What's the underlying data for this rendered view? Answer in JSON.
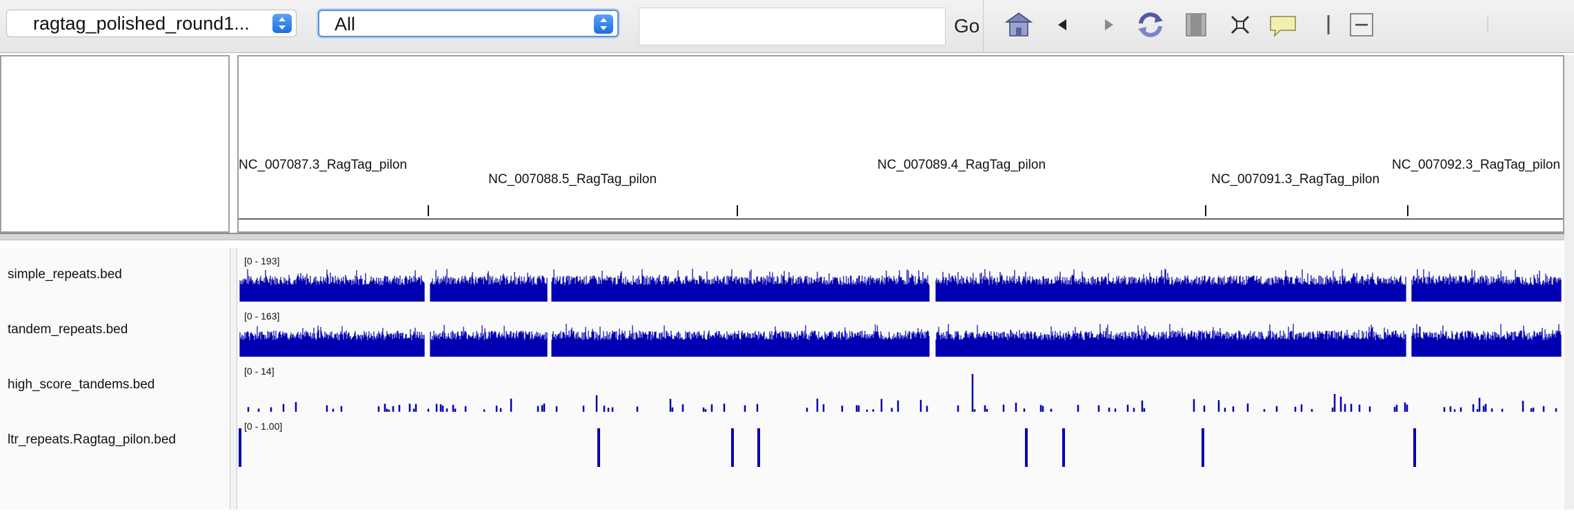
{
  "toolbar": {
    "genome": "ragtag_polished_round1...",
    "chromosome": "All",
    "locus_value": "",
    "go_label": "Go",
    "icons": [
      "home-icon",
      "back-icon",
      "forward-icon",
      "refresh-icon",
      "roi-icon",
      "fit-window-icon",
      "popup-info-icon",
      "ruler-toggle-icon",
      "zoom-out-icon"
    ]
  },
  "ruler": {
    "chromosomes": [
      {
        "name": "NC_007087.3_RagTag_pilon",
        "row": 0
      },
      {
        "name": "NC_007088.5_RagTag_pilon",
        "row": 1
      },
      {
        "name": "NC_007089.4_RagTag_pilon",
        "row": 0
      },
      {
        "name": "NC_007091.3_RagTag_pilon",
        "row": 1
      },
      {
        "name": "NC_007092.3_RagTag_pilon",
        "row": 0
      }
    ]
  },
  "tracks": [
    {
      "name": "simple_repeats.bed",
      "range": "[0 - 193]",
      "color": "#0000b2",
      "profile": "dense",
      "max": 193
    },
    {
      "name": "tandem_repeats.bed",
      "range": "[0 - 163]",
      "color": "#0000b2",
      "profile": "dense",
      "max": 163
    },
    {
      "name": "high_score_tandems.bed",
      "range": "[0 - 14]",
      "color": "#0000b2",
      "profile": "sparse",
      "max": 14
    },
    {
      "name": "ltr_repeats.Ragtag_pilon.bed",
      "range": "[0 - 1.00]",
      "color": "#0000b2",
      "profile": "features",
      "max": 1.0
    }
  ]
}
